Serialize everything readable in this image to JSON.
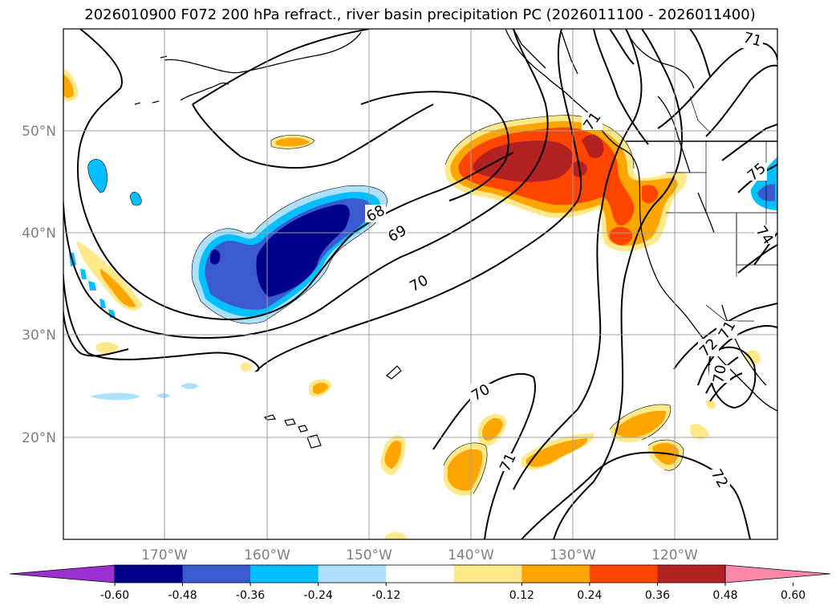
{
  "title": "2026010900 F072 200 hPa refract., river basin precipitation PC (2026011100 - 2026011400)",
  "map": {
    "lat_labels": [
      "50°N",
      "40°N",
      "30°N",
      "20°N"
    ],
    "lon_labels": [
      "170°W",
      "160°W",
      "150°W",
      "140°W",
      "130°W",
      "120°W"
    ],
    "contour_labels": [
      "68",
      "69",
      "70",
      "70",
      "71",
      "71",
      "72",
      "72",
      "70",
      "71",
      "75",
      "74",
      "71"
    ]
  },
  "colorbar": {
    "colors": [
      "#9b30d0",
      "#00008b",
      "#3a5bd0",
      "#00bfff",
      "#ade1fb",
      "#ffffff",
      "#fde98a",
      "#ffa500",
      "#ff4500",
      "#b22222",
      "#ff88aa"
    ],
    "tick_labels": [
      "-0.60",
      "-0.48",
      "-0.36",
      "-0.24",
      "-0.12",
      "0.12",
      "0.24",
      "0.36",
      "0.48",
      "0.60"
    ]
  }
}
